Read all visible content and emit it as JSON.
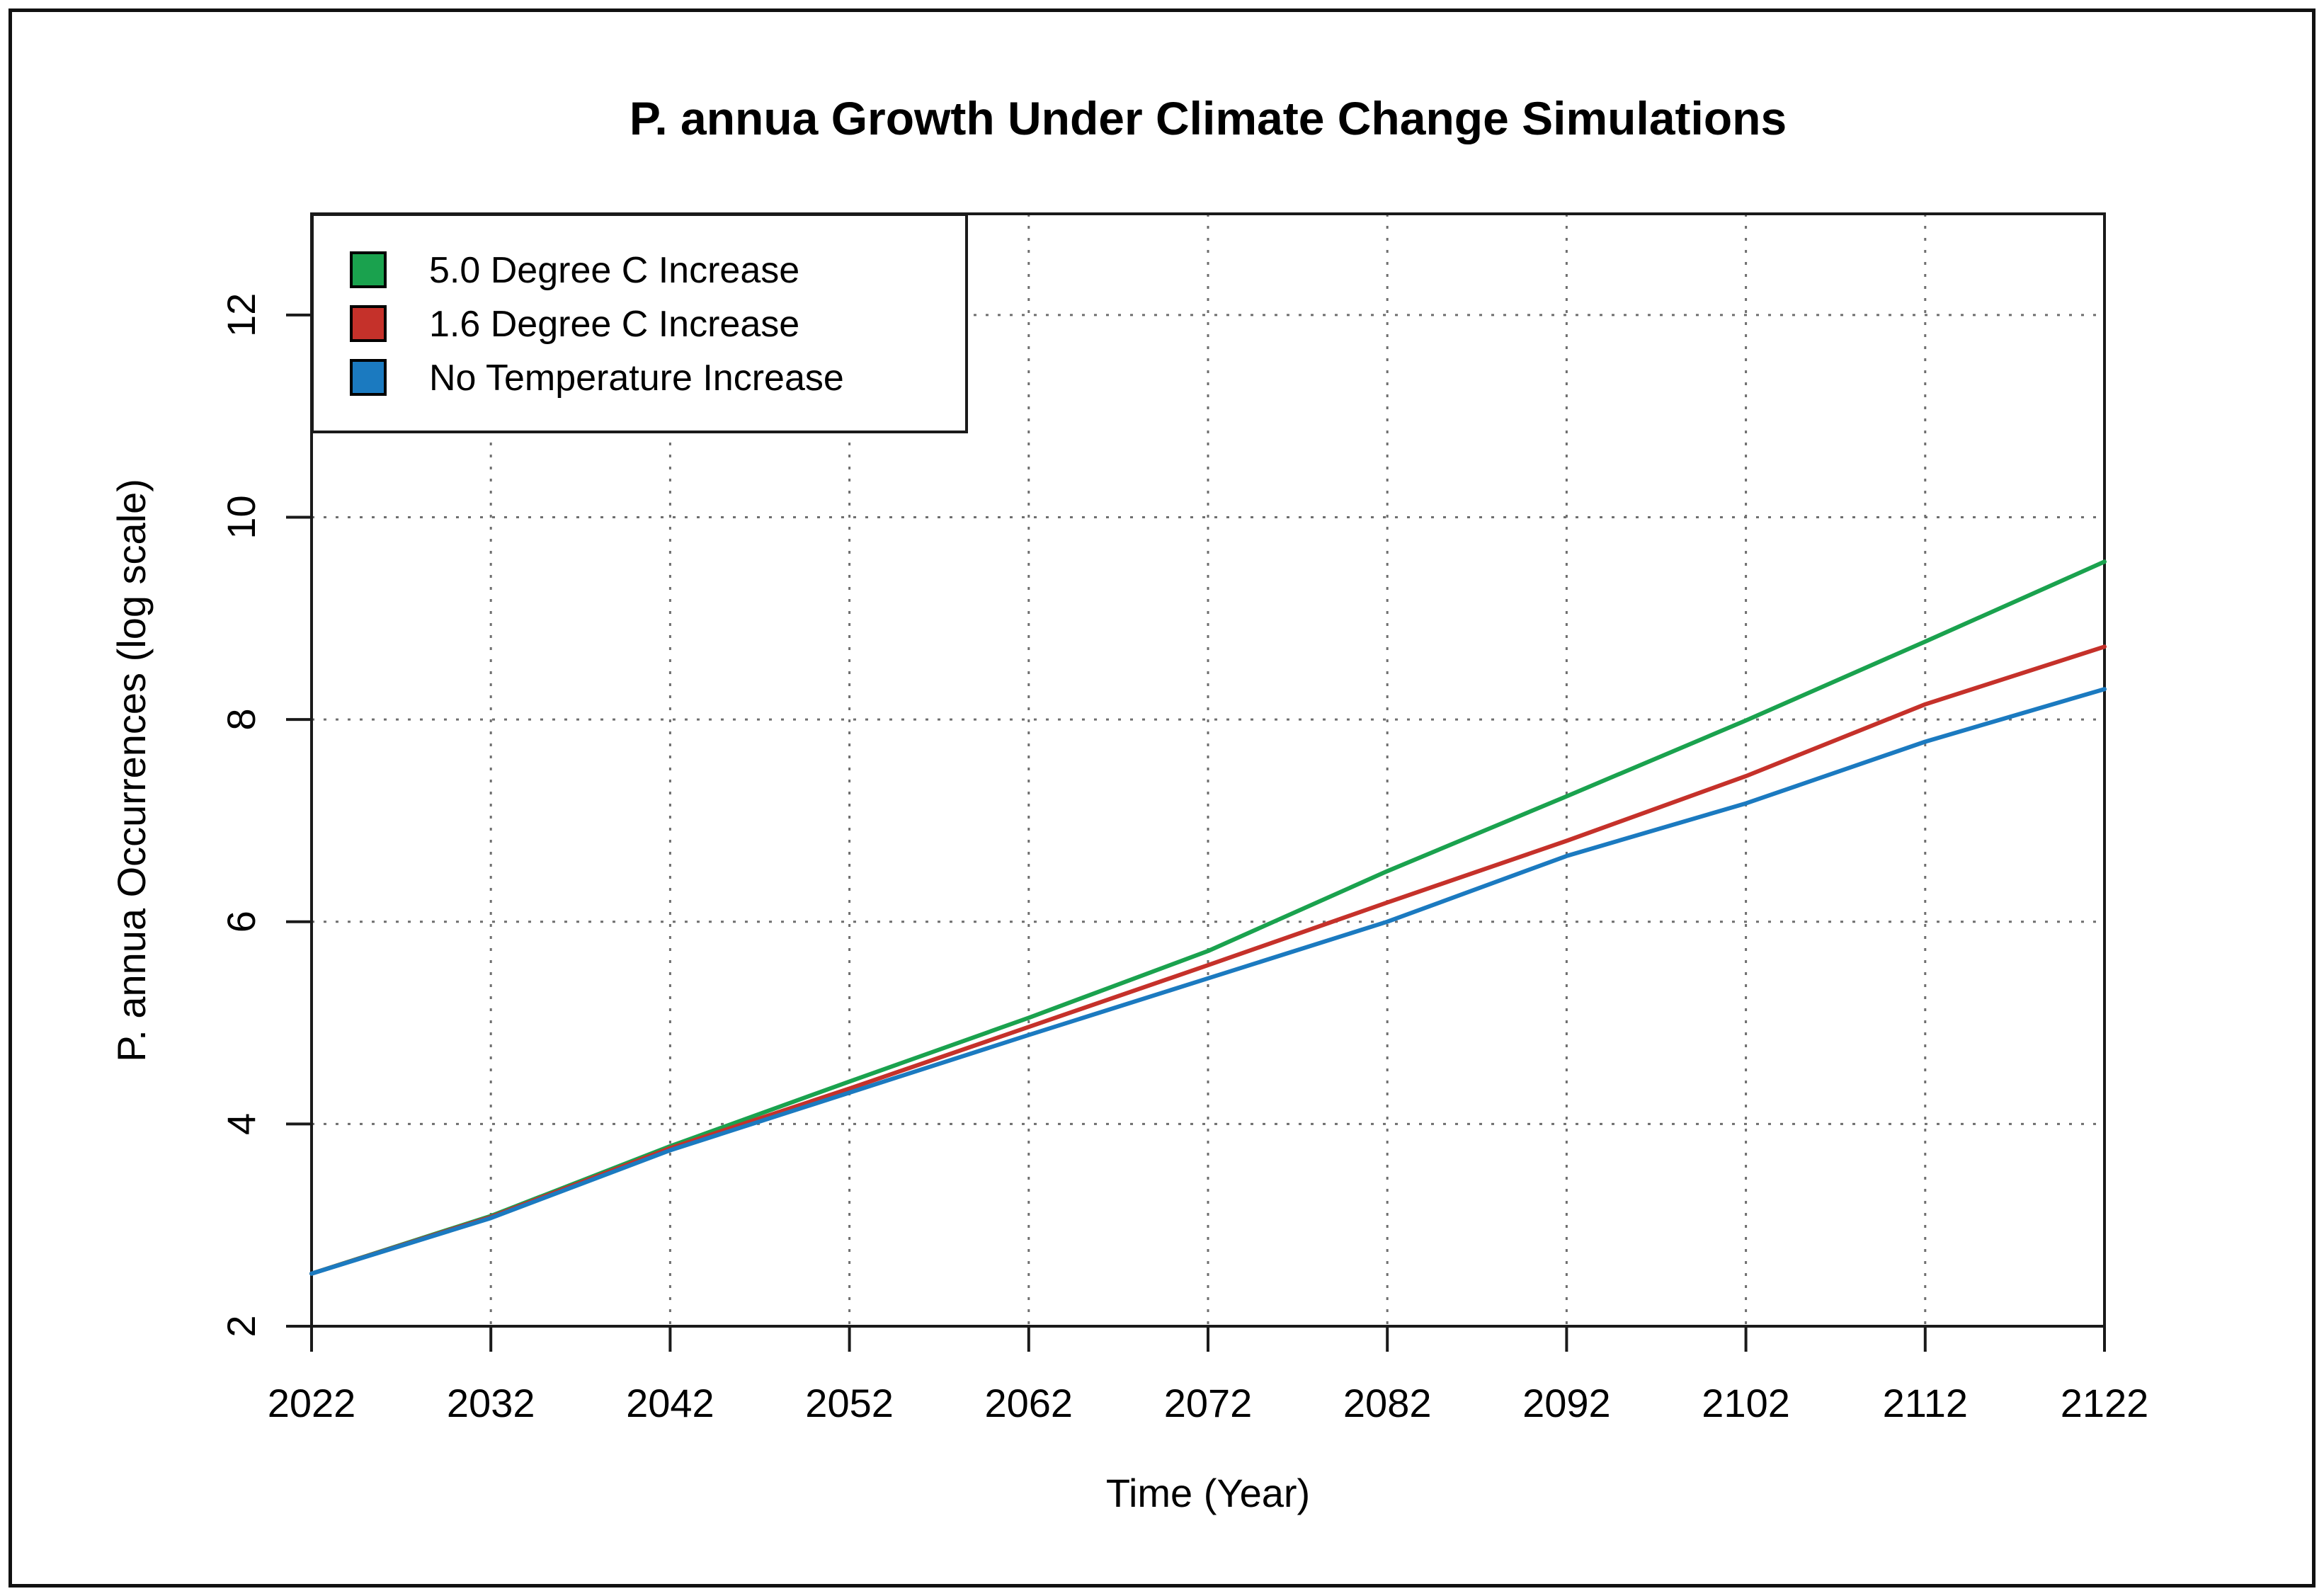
{
  "figure": {
    "title": "P. annua Growth Under Climate Change Simulations",
    "background_color": "#ffffff",
    "frame_color": "#111111"
  },
  "chart_data": {
    "type": "line",
    "title": "P. annua Growth Under Climate Change Simulations",
    "xlabel": "Time (Year)",
    "ylabel": "P. annua Occurrences (log scale)",
    "x": [
      2022,
      2032,
      2042,
      2052,
      2062,
      2072,
      2082,
      2092,
      2102,
      2112,
      2122
    ],
    "series": [
      {
        "name": "5.0 Degree C Increase",
        "color": "#1aa24e",
        "values": [
          2.52,
          3.09,
          3.78,
          4.42,
          5.05,
          5.71,
          6.5,
          7.24,
          7.99,
          8.77,
          9.56
        ]
      },
      {
        "name": "1.6 Degree C Increase",
        "color": "#c5312a",
        "values": [
          2.52,
          3.08,
          3.76,
          4.35,
          4.96,
          5.57,
          6.19,
          6.8,
          7.44,
          8.15,
          8.72
        ]
      },
      {
        "name": "No Temperature Increase",
        "color": "#1b7ac0",
        "values": [
          2.52,
          3.07,
          3.74,
          4.31,
          4.88,
          5.44,
          6.0,
          6.65,
          7.17,
          7.78,
          8.3
        ]
      }
    ],
    "xlim": [
      2022,
      2122
    ],
    "ylim": [
      2,
      13
    ],
    "xticks": [
      2022,
      2032,
      2042,
      2052,
      2062,
      2072,
      2082,
      2092,
      2102,
      2112,
      2122
    ],
    "yticks": [
      2,
      4,
      6,
      8,
      10,
      12
    ],
    "grid": "dotted",
    "grid_color": "#6e6e6e",
    "axis_color": "#1a1a1a",
    "legend_position": "top-left",
    "legend_background": "#ffffff"
  }
}
